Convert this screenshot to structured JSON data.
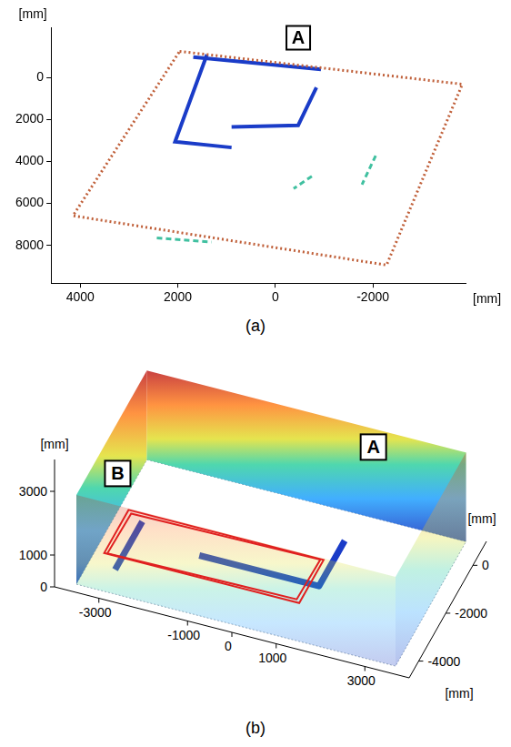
{
  "chart_data": {
    "type": "scatter",
    "panel_label": "(a)",
    "x_label": "[mm]",
    "y_label": "[mm]",
    "xlim": [
      4600,
      -3900
    ],
    "xticks": [
      4000,
      2000,
      0,
      -2000
    ],
    "ylim": [
      9800,
      -2400
    ],
    "yticks": [
      0,
      2000,
      4000,
      6000,
      8000
    ],
    "grid": false,
    "annotations": [
      {
        "text": "A",
        "x": -470,
        "y": -1900
      }
    ],
    "series": [
      {
        "color": "#c0603a",
        "line_style": "dotted",
        "x": [
          1964,
          -3834,
          -2281,
          4151,
          1964
        ],
        "values": [
          -1254,
          314,
          8938,
          6586,
          -1254
        ]
      },
      {
        "color": "#1a3cc8",
        "line_style": "solid",
        "x": [
          1683,
          -935
        ],
        "values": [
          -980,
          -392
        ]
      },
      {
        "color": "#1a3cc8",
        "line_style": "solid",
        "x": [
          1403,
          2057,
          898
        ],
        "values": [
          -1098,
          3058,
          3332
        ]
      },
      {
        "color": "#1a3cc8",
        "line_style": "solid",
        "x": [
          898,
          -468,
          -842
        ],
        "values": [
          2352,
          2274,
          470
        ]
      },
      {
        "color": "#40c0a0",
        "line_style": "dashed",
        "x": [
          -2057,
          -1777
        ],
        "values": [
          3724,
          5096
        ]
      },
      {
        "color": "#40c0a0",
        "line_style": "dashed",
        "x": [
          -748,
          -374
        ],
        "values": [
          4704,
          5292
        ]
      },
      {
        "color": "#40c0a0",
        "line_style": "dashed",
        "x": [
          2431,
          1309
        ],
        "values": [
          7644,
          7840
        ]
      }
    ]
  },
  "panel_b": {
    "panel_label": "(b)",
    "x_label": "[mm]",
    "y_label": "[mm]",
    "z_label": "[mm]",
    "xlim": [
      -4000,
      4000
    ],
    "xticks": [
      -3000,
      -1000,
      0,
      1000,
      3000
    ],
    "ylim": [
      -4700,
      1000
    ],
    "yticks": [
      -4000,
      -2000,
      0
    ],
    "zlim": [
      0,
      4000
    ],
    "zticks": [
      0,
      1000,
      3000
    ],
    "room": {
      "corners": [
        [
          -3600,
          -4400
        ],
        [
          3600,
          -4400
        ],
        [
          3600,
          800
        ],
        [
          -3600,
          800
        ]
      ],
      "height": 2800
    },
    "structures": [
      {
        "color": "#1a3cc8",
        "points": [
          [
            -1500,
            -2200,
            0
          ],
          [
            1200,
            -2200,
            0
          ],
          [
            1200,
            -300,
            0
          ]
        ]
      },
      {
        "color": "#1a3cc8",
        "points": [
          [
            -3000,
            -3500,
            0
          ],
          [
            -3000,
            -1500,
            0
          ]
        ]
      }
    ],
    "region": {
      "text": "B",
      "color": "#e02020",
      "corners": [
        [
          -3400,
          -1200,
          0
        ],
        [
          1000,
          -1200,
          0
        ],
        [
          1000,
          -3000,
          0
        ],
        [
          -3400,
          -3000,
          0
        ]
      ]
    },
    "annotations": [
      {
        "text": "A",
        "x": 2000,
        "y": -800,
        "z": 3600
      }
    ]
  }
}
